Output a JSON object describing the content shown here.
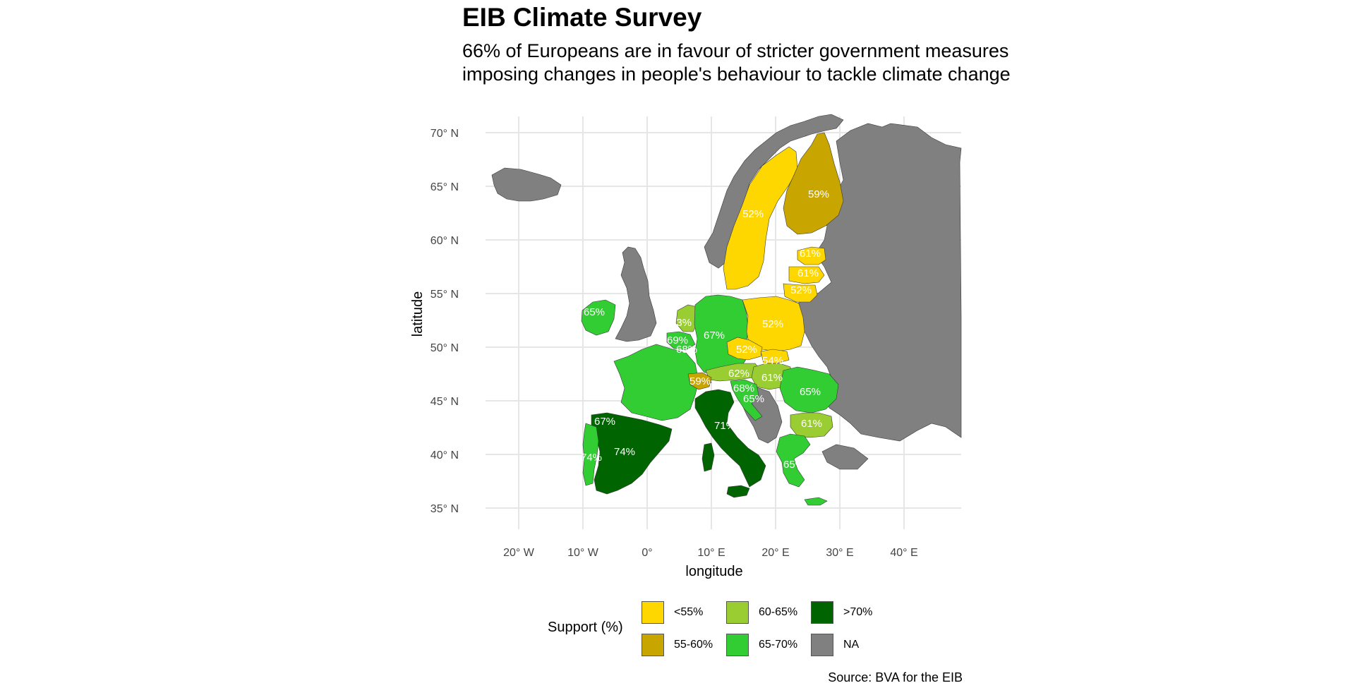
{
  "title": "EIB Climate Survey",
  "subtitle_lines": [
    "66% of Europeans are in favour of stricter government measures",
    "imposing changes in people's behaviour to tackle climate change"
  ],
  "chart_data": {
    "type": "choropleth-map",
    "xlabel": "longitude",
    "ylabel": "latitude",
    "x_ticks": [
      "20° W",
      "10° W",
      "0°",
      "10° E",
      "20° E",
      "30° E",
      "40° E"
    ],
    "y_ticks": [
      "70° N",
      "65° N",
      "60° N",
      "55° N",
      "50° N",
      "45° N",
      "40° N",
      "35° N"
    ],
    "grid": true,
    "legend_title": "Support (%)",
    "legend_placement": "bottom",
    "legend": [
      {
        "label": "<55%",
        "color": "#FFD700"
      },
      {
        "label": "55-60%",
        "color": "#C9A500"
      },
      {
        "label": "60-65%",
        "color": "#9ACD32"
      },
      {
        "label": "65-70%",
        "color": "#32CD32"
      },
      {
        "label": ">70%",
        "color": "#006400"
      },
      {
        "label": "NA",
        "color": "#808080"
      }
    ],
    "labels": [
      {
        "text": "52%"
      },
      {
        "text": "59%"
      },
      {
        "text": "61%"
      },
      {
        "text": "61%"
      },
      {
        "text": "52%"
      },
      {
        "text": "65%"
      },
      {
        "text": "63%"
      },
      {
        "text": "67%"
      },
      {
        "text": "69%"
      },
      {
        "text": "68%"
      },
      {
        "text": "52%"
      },
      {
        "text": "52%"
      },
      {
        "text": "54%"
      },
      {
        "text": "62%"
      },
      {
        "text": "61%"
      },
      {
        "text": "59%"
      },
      {
        "text": "68%"
      },
      {
        "text": "65%"
      },
      {
        "text": "65%"
      },
      {
        "text": "61%"
      },
      {
        "text": "71%"
      },
      {
        "text": "67%"
      },
      {
        "text": "74%"
      },
      {
        "text": "74%"
      },
      {
        "text": "65%"
      }
    ]
  },
  "source": "Source: BVA for the EIB"
}
